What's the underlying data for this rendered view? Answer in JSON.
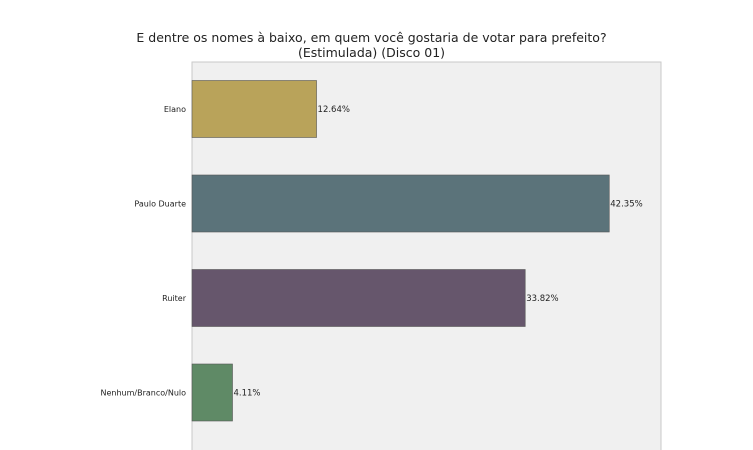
{
  "chart_data": {
    "type": "bar",
    "orientation": "horizontal",
    "title": "E dentre os nomes à baixo, em quem você gostaria de votar para prefeito?",
    "subtitle": "(Estimulada) (Disco 01)",
    "categories": [
      "Elano",
      "Paulo Duarte",
      "Ruiter",
      "Nenhum/Branco/Nulo"
    ],
    "values": [
      12.64,
      42.35,
      33.82,
      4.11
    ],
    "value_labels": [
      "12.64%",
      "42.35%",
      "33.82%",
      "4.11%"
    ],
    "colors": [
      "#b9a35a",
      "#5b737a",
      "#66566c",
      "#5f8a66"
    ],
    "xlim": [
      0,
      47.6
    ],
    "grid": false,
    "legend": "none",
    "plot_background": "#f0f0f0"
  }
}
